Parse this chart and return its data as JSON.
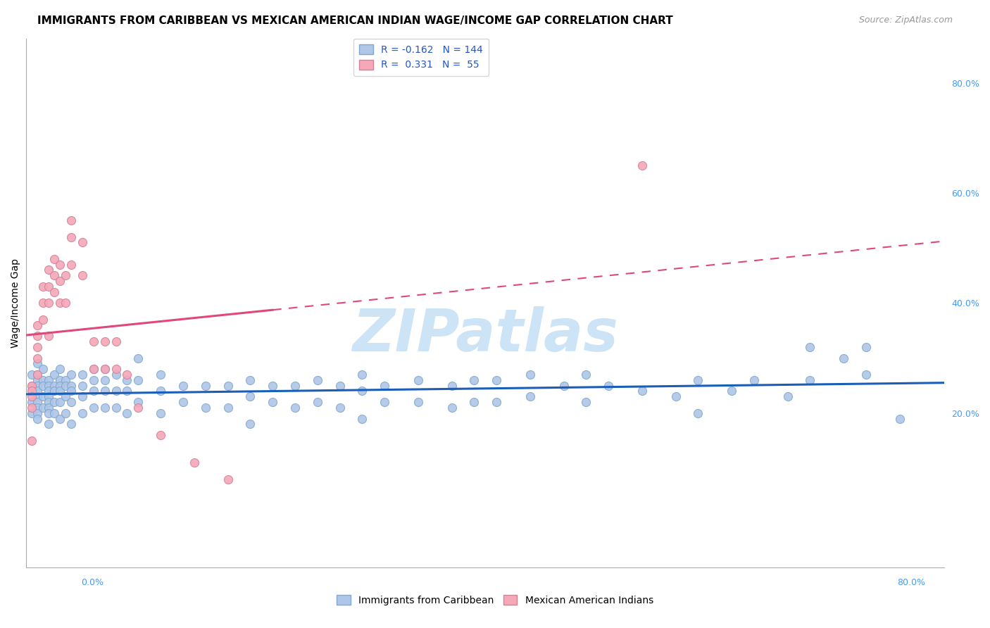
{
  "title": "IMMIGRANTS FROM CARIBBEAN VS MEXICAN AMERICAN INDIAN WAGE/INCOME GAP CORRELATION CHART",
  "source": "Source: ZipAtlas.com",
  "ylabel": "Wage/Income Gap",
  "legend_blue_label": "Immigrants from Caribbean",
  "legend_pink_label": "Mexican American Indians",
  "blue_R": -0.162,
  "blue_N": 144,
  "pink_R": 0.331,
  "pink_N": 55,
  "blue_color": "#aec6e8",
  "pink_color": "#f4a8b8",
  "blue_line_color": "#1a5eb8",
  "pink_line_color": "#e04878",
  "blue_edge_color": "#80a8d0",
  "pink_edge_color": "#d88098",
  "watermark": "ZIPatlas",
  "watermark_color": "#cce4f5",
  "xlim": [
    0.0,
    0.82
  ],
  "ylim": [
    -0.08,
    0.88
  ],
  "background_color": "#ffffff",
  "grid_color": "#cccccc",
  "title_fontsize": 11,
  "axis_fontsize": 10,
  "tick_fontsize": 9,
  "legend_fontsize": 10,
  "watermark_fontsize": 60,
  "source_fontsize": 9,
  "source_color": "#999999",
  "blue_scatter_x": [
    0.005,
    0.005,
    0.005,
    0.005,
    0.005,
    0.01,
    0.01,
    0.01,
    0.01,
    0.01,
    0.01,
    0.01,
    0.01,
    0.01,
    0.01,
    0.015,
    0.015,
    0.015,
    0.015,
    0.015,
    0.02,
    0.02,
    0.02,
    0.02,
    0.02,
    0.02,
    0.02,
    0.02,
    0.025,
    0.025,
    0.025,
    0.025,
    0.025,
    0.03,
    0.03,
    0.03,
    0.03,
    0.03,
    0.03,
    0.035,
    0.035,
    0.035,
    0.035,
    0.04,
    0.04,
    0.04,
    0.04,
    0.04,
    0.05,
    0.05,
    0.05,
    0.05,
    0.06,
    0.06,
    0.06,
    0.06,
    0.07,
    0.07,
    0.07,
    0.07,
    0.08,
    0.08,
    0.08,
    0.09,
    0.09,
    0.09,
    0.1,
    0.1,
    0.1,
    0.12,
    0.12,
    0.12,
    0.14,
    0.14,
    0.16,
    0.16,
    0.18,
    0.18,
    0.2,
    0.2,
    0.2,
    0.22,
    0.22,
    0.24,
    0.24,
    0.26,
    0.26,
    0.28,
    0.28,
    0.3,
    0.3,
    0.3,
    0.32,
    0.32,
    0.35,
    0.35,
    0.38,
    0.38,
    0.4,
    0.4,
    0.42,
    0.42,
    0.45,
    0.45,
    0.48,
    0.5,
    0.5,
    0.52,
    0.55,
    0.58,
    0.6,
    0.6,
    0.63,
    0.65,
    0.68,
    0.7,
    0.7,
    0.73,
    0.75,
    0.75,
    0.78
  ],
  "blue_scatter_y": [
    0.27,
    0.25,
    0.24,
    0.22,
    0.2,
    0.29,
    0.27,
    0.26,
    0.25,
    0.24,
    0.23,
    0.22,
    0.21,
    0.2,
    0.19,
    0.28,
    0.26,
    0.25,
    0.23,
    0.21,
    0.26,
    0.25,
    0.24,
    0.23,
    0.22,
    0.21,
    0.2,
    0.18,
    0.27,
    0.25,
    0.24,
    0.22,
    0.2,
    0.28,
    0.26,
    0.25,
    0.24,
    0.22,
    0.19,
    0.26,
    0.25,
    0.23,
    0.2,
    0.27,
    0.25,
    0.24,
    0.22,
    0.18,
    0.27,
    0.25,
    0.23,
    0.2,
    0.28,
    0.26,
    0.24,
    0.21,
    0.28,
    0.26,
    0.24,
    0.21,
    0.27,
    0.24,
    0.21,
    0.26,
    0.24,
    0.2,
    0.3,
    0.26,
    0.22,
    0.27,
    0.24,
    0.2,
    0.25,
    0.22,
    0.25,
    0.21,
    0.25,
    0.21,
    0.26,
    0.23,
    0.18,
    0.25,
    0.22,
    0.25,
    0.21,
    0.26,
    0.22,
    0.25,
    0.21,
    0.27,
    0.24,
    0.19,
    0.25,
    0.22,
    0.26,
    0.22,
    0.25,
    0.21,
    0.26,
    0.22,
    0.26,
    0.22,
    0.27,
    0.23,
    0.25,
    0.27,
    0.22,
    0.25,
    0.24,
    0.23,
    0.26,
    0.2,
    0.24,
    0.26,
    0.23,
    0.32,
    0.26,
    0.3,
    0.32,
    0.27,
    0.19
  ],
  "pink_scatter_x": [
    0.005,
    0.005,
    0.005,
    0.005,
    0.005,
    0.01,
    0.01,
    0.01,
    0.01,
    0.01,
    0.015,
    0.015,
    0.015,
    0.02,
    0.02,
    0.02,
    0.02,
    0.025,
    0.025,
    0.025,
    0.03,
    0.03,
    0.03,
    0.035,
    0.035,
    0.04,
    0.04,
    0.04,
    0.05,
    0.05,
    0.06,
    0.06,
    0.07,
    0.07,
    0.08,
    0.08,
    0.09,
    0.1,
    0.12,
    0.15,
    0.18,
    0.55
  ],
  "pink_scatter_y": [
    0.25,
    0.24,
    0.23,
    0.21,
    0.15,
    0.36,
    0.34,
    0.32,
    0.3,
    0.27,
    0.43,
    0.4,
    0.37,
    0.46,
    0.43,
    0.4,
    0.34,
    0.48,
    0.45,
    0.42,
    0.47,
    0.44,
    0.4,
    0.45,
    0.4,
    0.55,
    0.52,
    0.47,
    0.51,
    0.45,
    0.33,
    0.28,
    0.33,
    0.28,
    0.33,
    0.28,
    0.27,
    0.21,
    0.16,
    0.11,
    0.08,
    0.65
  ]
}
